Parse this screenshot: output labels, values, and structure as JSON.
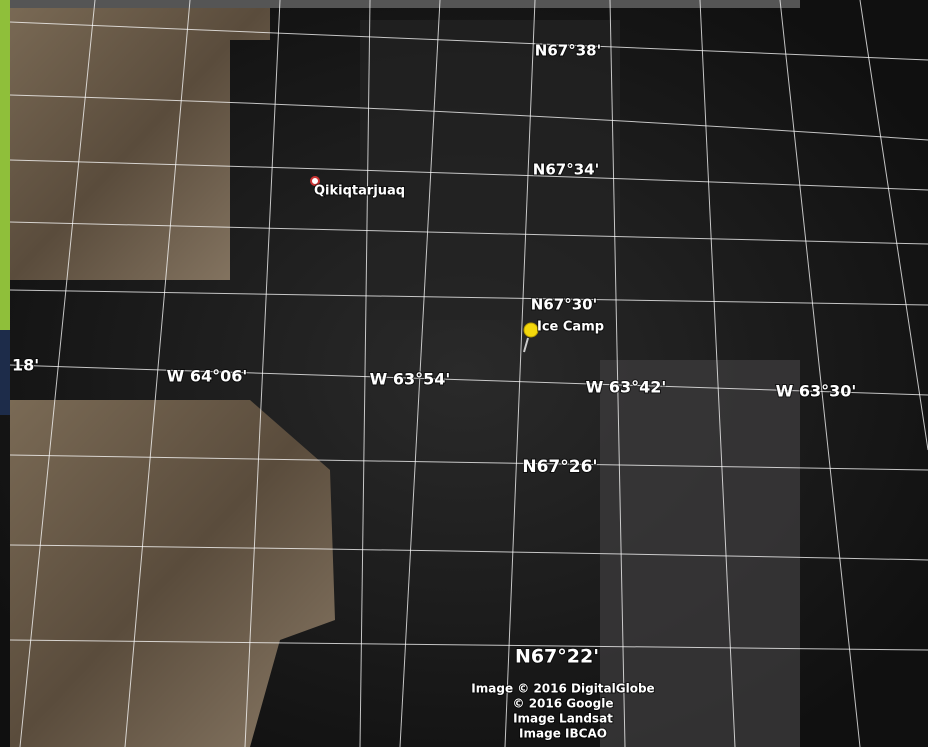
{
  "map": {
    "latitude_labels": [
      "N67°38'",
      "N67°34'",
      "N67°30'",
      "N67°26'",
      "N67°22'"
    ],
    "longitude_labels": [
      "W 64°06'",
      "W 63°54'",
      "W 63°42'",
      "W 63°30'"
    ],
    "edge_label": "18'",
    "places": [
      "Qikiqtarjuaq",
      "Ice Camp"
    ],
    "attribution": [
      "Image © 2016 DigitalGlobe",
      "© 2016 Google",
      "Image Landsat",
      "Image IBCAO"
    ]
  }
}
